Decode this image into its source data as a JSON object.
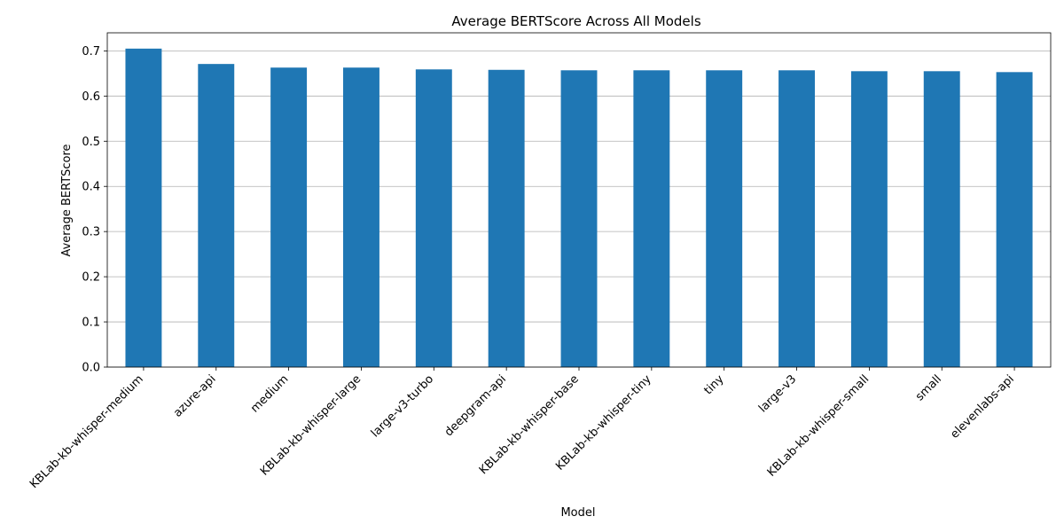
{
  "chart_data": {
    "type": "bar",
    "title": "Average BERTScore Across All Models",
    "xlabel": "Model",
    "ylabel": "Average BERTScore",
    "categories": [
      "KBLab-kb-whisper-medium",
      "azure-api",
      "medium",
      "KBLab-kb-whisper-large",
      "large-v3-turbo",
      "deepgram-api",
      "KBLab-kb-whisper-base",
      "KBLab-kb-whisper-tiny",
      "tiny",
      "large-v3",
      "KBLab-kb-whisper-small",
      "small",
      "elevenlabs-api"
    ],
    "values": [
      0.705,
      0.671,
      0.663,
      0.663,
      0.659,
      0.658,
      0.657,
      0.657,
      0.657,
      0.657,
      0.655,
      0.655,
      0.653
    ],
    "ylim": [
      0,
      0.74
    ],
    "yticks": [
      "0.0",
      "0.1",
      "0.2",
      "0.3",
      "0.4",
      "0.5",
      "0.6",
      "0.7"
    ],
    "grid": "y",
    "bar_color": "#1f77b4"
  }
}
